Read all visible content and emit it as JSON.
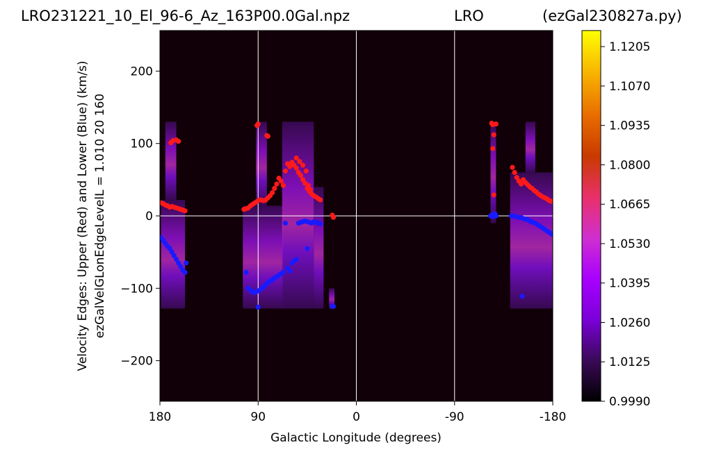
{
  "header": {
    "filename": "LRO231221_10_El_96-6_Az_163P00.0Gal.npz",
    "site": "LRO",
    "program": "(ezGal230827a.py)"
  },
  "chart_data": {
    "type": "heatmap",
    "xlabel": "Galactic Longitude (degrees)",
    "ylabel_line1": "Velocity Edges: Upper (Red) and Lower (Blue) (km/s)",
    "ylabel_line2": "ezGalVelGLonEdgeLevelL = 1.010  20  160",
    "xlim": [
      180,
      -180
    ],
    "ylim": [
      -256,
      256
    ],
    "x_ticks": [
      180,
      90,
      0,
      -90,
      -180
    ],
    "x_tick_labels": [
      "180",
      "90",
      "0",
      "-90",
      "-180"
    ],
    "y_ticks": [
      200,
      100,
      0,
      -100,
      -200
    ],
    "y_tick_labels": [
      "200",
      "100",
      "0",
      "−100",
      "−200"
    ],
    "gridlines_x": [
      90,
      0,
      -90
    ],
    "gridlines_y": [
      0
    ],
    "colorbar": {
      "min": 0.999,
      "max": 1.126,
      "ticks": [
        0.999,
        1.0125,
        1.026,
        1.0395,
        1.053,
        1.0665,
        1.08,
        1.0935,
        1.107,
        1.1205
      ],
      "tick_labels": [
        "0.9990",
        "1.0125",
        "1.0260",
        "1.0395",
        "1.0530",
        "1.0665",
        "1.0800",
        "1.0935",
        "1.1070",
        "1.1205"
      ],
      "colormap": "gnuplot",
      "colors": [
        "#000000",
        "#3a0a58",
        "#7a00d8",
        "#a800ff",
        "#d02fd0",
        "#e8306a",
        "#c83a00",
        "#e86c00",
        "#f7b000",
        "#ffff00"
      ]
    },
    "background_color": "#120008",
    "emission_blocks": [
      {
        "x0": 179,
        "x1": 157,
        "y0": -128,
        "y1": 22
      },
      {
        "x0": 175,
        "x1": 165,
        "y0": 22,
        "y1": 130
      },
      {
        "x0": 104,
        "x1": 67,
        "y0": -128,
        "y1": 14
      },
      {
        "x0": 92,
        "x1": 82,
        "y0": 14,
        "y1": 130
      },
      {
        "x0": 68,
        "x1": 39,
        "y0": -128,
        "y1": 130
      },
      {
        "x0": 39,
        "x1": 30,
        "y0": -128,
        "y1": 40
      },
      {
        "x0": 25,
        "x1": 20,
        "y0": -128,
        "y1": -100
      },
      {
        "x0": -123,
        "x1": -128,
        "y0": -10,
        "y1": 130
      },
      {
        "x0": -141,
        "x1": -180,
        "y0": -128,
        "y1": 60
      },
      {
        "x0": -155,
        "x1": -164,
        "y0": 60,
        "y1": 130
      }
    ],
    "series": [
      {
        "name": "Upper (Red)",
        "color": "#ff1a1a",
        "x": [
          179,
          177,
          175,
          173,
          171,
          169,
          167,
          165,
          163,
          161,
          159,
          157,
          170,
          168,
          165,
          163,
          103,
          101,
          99,
          97,
          95,
          93,
          91,
          89,
          87,
          85,
          83,
          81,
          79,
          77,
          75,
          73,
          71,
          69,
          67,
          91,
          90,
          82,
          81,
          65,
          63,
          61,
          59,
          57,
          55,
          53,
          51,
          49,
          47,
          45,
          43,
          41,
          39,
          37,
          35,
          33,
          55,
          52,
          49,
          46,
          44,
          42,
          22,
          21,
          -124,
          -125,
          -126,
          -125,
          -126,
          -128,
          -143,
          -145,
          -147,
          -149,
          -151,
          -153,
          -155,
          -157,
          -159,
          -161,
          -163,
          -165,
          -167,
          -169,
          -171,
          -173,
          -175,
          -177,
          -179
        ],
        "y": [
          18,
          17,
          15,
          14,
          12,
          13,
          12,
          11,
          10,
          9,
          8,
          7,
          101,
          104,
          105,
          103,
          9,
          10,
          11,
          14,
          16,
          18,
          20,
          22,
          22,
          21,
          22,
          25,
          28,
          32,
          38,
          44,
          52,
          48,
          42,
          125,
          127,
          111,
          110,
          62,
          72,
          68,
          74,
          70,
          66,
          60,
          56,
          50,
          45,
          38,
          34,
          30,
          28,
          26,
          24,
          22,
          80,
          75,
          70,
          62,
          42,
          36,
          1,
          -2,
          128,
          93,
          112,
          126,
          29,
          127,
          67,
          60,
          53,
          48,
          44,
          50,
          46,
          43,
          40,
          38,
          35,
          33,
          30,
          28,
          26,
          25,
          23,
          21,
          20
        ]
      },
      {
        "name": "Lower (Blue)",
        "color": "#1a1aff",
        "x": [
          179,
          177,
          175,
          173,
          171,
          169,
          167,
          165,
          163,
          161,
          159,
          157,
          156,
          101,
          99,
          97,
          95,
          93,
          91,
          89,
          87,
          85,
          83,
          81,
          79,
          77,
          75,
          73,
          71,
          69,
          67,
          90,
          65,
          63,
          61,
          59,
          57,
          55,
          53,
          51,
          49,
          47,
          45,
          43,
          41,
          39,
          37,
          35,
          33,
          45,
          22,
          21,
          -123,
          -124,
          -125,
          -126,
          -127,
          -128,
          -142,
          -144,
          -146,
          -148,
          -150,
          -152,
          -154,
          -156,
          -158,
          -160,
          -162,
          -164,
          -166,
          -168,
          -170,
          -172,
          -174,
          -176,
          -178,
          -180,
          -152
        ],
        "y": [
          -30,
          -34,
          -38,
          -42,
          -45,
          -50,
          -55,
          -60,
          -65,
          -70,
          -75,
          -78,
          -65,
          -78,
          -100,
          -103,
          -105,
          -106,
          -104,
          -103,
          -100,
          -98,
          -95,
          -92,
          -90,
          -88,
          -86,
          -84,
          -82,
          -80,
          -78,
          -126,
          -10,
          -72,
          -76,
          -65,
          -62,
          -60,
          -10,
          -9,
          -8,
          -7,
          -8,
          -9,
          -10,
          -8,
          -9,
          -10,
          -11,
          -45,
          -125,
          -125,
          0,
          1,
          -1,
          2,
          3,
          0,
          0,
          0,
          -1,
          -2,
          -2,
          -3,
          -4,
          -5,
          -6,
          -8,
          -9,
          -10,
          -12,
          -14,
          -16,
          -18,
          -20,
          -22,
          -24,
          -26,
          -111
        ]
      }
    ]
  }
}
